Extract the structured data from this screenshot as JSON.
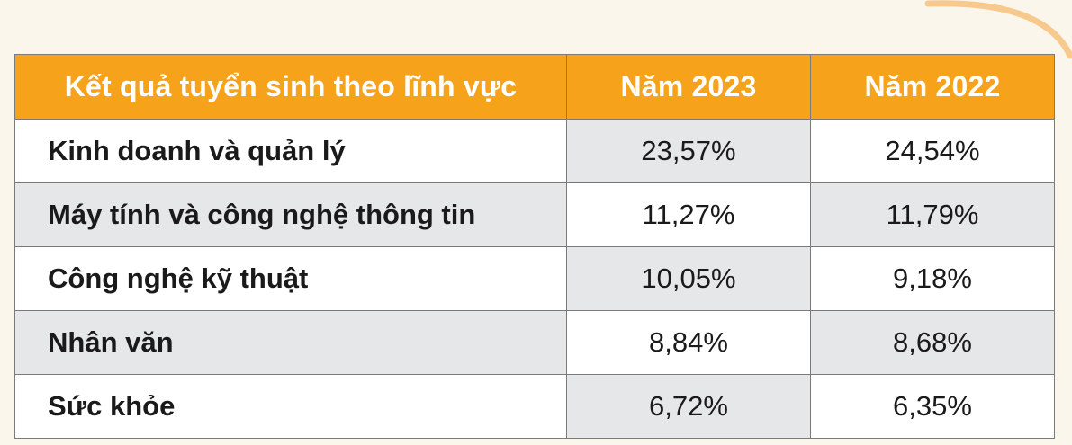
{
  "colors": {
    "header_bg": "#f7a21b",
    "header_text": "#ffffff",
    "band_gray": "#e6e7e9",
    "page_bg": "#fbf6ec"
  },
  "table": {
    "headers": [
      "Kết quả tuyển sinh theo lĩnh vực",
      "Năm 2023",
      "Năm 2022"
    ],
    "rows": [
      {
        "label": "Kinh doanh và quản lý",
        "y2023": "23,57%",
        "y2022": "24,54%"
      },
      {
        "label": "Máy tính và công nghệ thông tin",
        "y2023": "11,27%",
        "y2022": "11,79%"
      },
      {
        "label": "Công nghệ kỹ thuật",
        "y2023": "10,05%",
        "y2022": "9,18%"
      },
      {
        "label": "Nhân văn",
        "y2023": "8,84%",
        "y2022": "8,68%"
      },
      {
        "label": "Sức khỏe",
        "y2023": "6,72%",
        "y2022": "6,35%"
      }
    ]
  },
  "chart_data": {
    "type": "table",
    "title": "",
    "columns": [
      "Kết quả tuyển sinh theo lĩnh vực",
      "Năm 2023",
      "Năm 2022"
    ],
    "categories": [
      "Kinh doanh và quản lý",
      "Máy tính và công nghệ thông tin",
      "Công nghệ kỹ thuật",
      "Nhân văn",
      "Sức khỏe"
    ],
    "series": [
      {
        "name": "Năm 2023",
        "values": [
          23.57,
          11.27,
          10.05,
          8.84,
          6.72
        ]
      },
      {
        "name": "Năm 2022",
        "values": [
          24.54,
          11.79,
          9.18,
          8.68,
          6.35
        ]
      }
    ],
    "unit": "%"
  }
}
